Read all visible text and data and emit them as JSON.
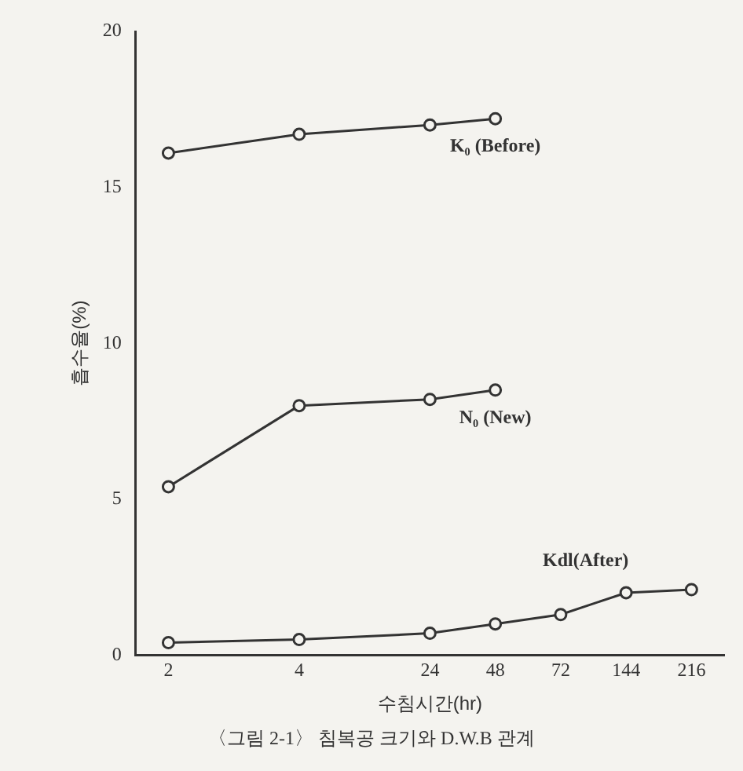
{
  "chart_data": {
    "type": "line",
    "ylabel": "흡수율(%)",
    "xlabel": "수침시간(hr)",
    "categories": [
      "2",
      null,
      "4",
      null,
      "24",
      "48",
      "72",
      "144",
      "216"
    ],
    "series": [
      {
        "name": "K₀ (Before)",
        "color": "#333333",
        "values": [
          16.1,
          null,
          16.7,
          null,
          17.0,
          17.2,
          null,
          null,
          null
        ]
      },
      {
        "name": "N₀ (New)",
        "color": "#333333",
        "values": [
          5.4,
          null,
          8.0,
          null,
          8.2,
          8.5,
          null,
          null,
          null
        ]
      },
      {
        "name": "Kdl(After)",
        "color": "#333333",
        "values": [
          0.4,
          null,
          0.5,
          null,
          0.7,
          1.0,
          1.3,
          2.0,
          2.1
        ]
      }
    ],
    "ylim": [
      0,
      20
    ],
    "yticks": [
      0,
      5,
      10,
      15,
      20
    ],
    "grid": false,
    "legend": false,
    "marker": "circle",
    "line_style": "solid",
    "annotations": [
      "〈그림 2-1〉 침복공 크기와 D.W.B 관계"
    ]
  }
}
